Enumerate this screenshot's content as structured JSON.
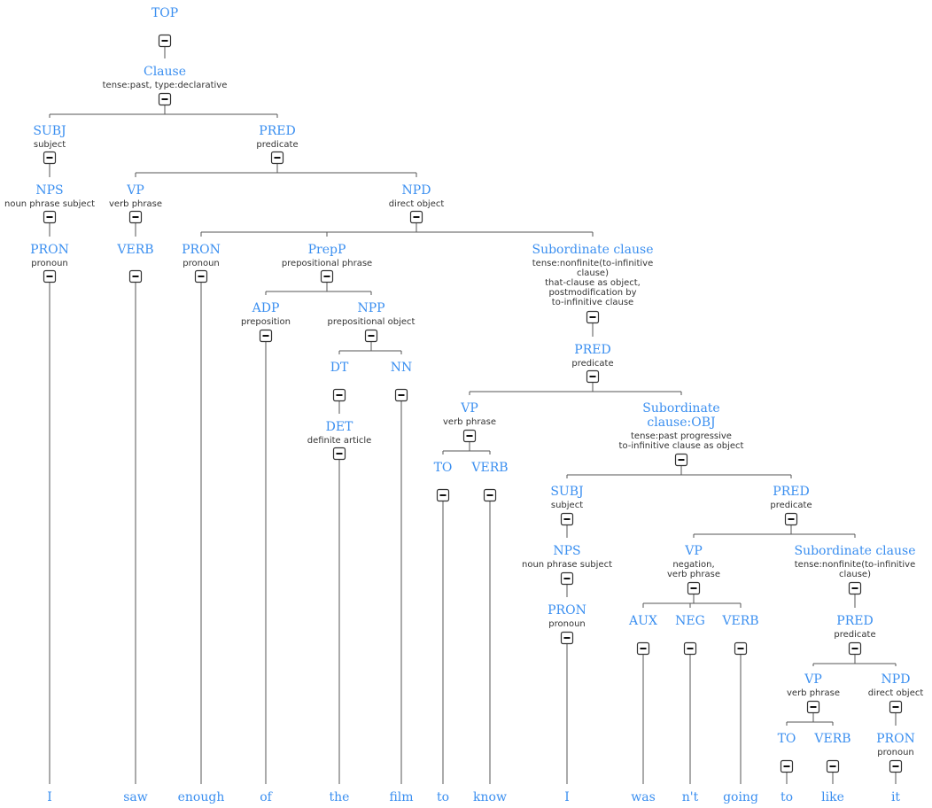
{
  "colors": {
    "label": "#3b8ff0",
    "description": "#333333",
    "edge": "#555555"
  },
  "toggle_icon": "collapse-minus-icon",
  "nodes": [
    {
      "id": "top",
      "label": "TOP",
      "desc": []
    },
    {
      "id": "clause",
      "label": "Clause",
      "desc": [
        "tense:past, type:declarative"
      ]
    },
    {
      "id": "subj",
      "label": "SUBJ",
      "desc": [
        "subject"
      ]
    },
    {
      "id": "pred",
      "label": "PRED",
      "desc": [
        "predicate"
      ]
    },
    {
      "id": "nps1",
      "label": "NPS",
      "desc": [
        "noun phrase subject"
      ]
    },
    {
      "id": "pron1",
      "label": "PRON",
      "desc": [
        "pronoun"
      ]
    },
    {
      "id": "vp1",
      "label": "VP",
      "desc": [
        "verb phrase"
      ]
    },
    {
      "id": "verb1",
      "label": "VERB",
      "desc": []
    },
    {
      "id": "npd",
      "label": "NPD",
      "desc": [
        "direct object"
      ]
    },
    {
      "id": "pron2",
      "label": "PRON",
      "desc": [
        "pronoun"
      ]
    },
    {
      "id": "prepp",
      "label": "PrepP",
      "desc": [
        "prepositional phrase"
      ]
    },
    {
      "id": "adp",
      "label": "ADP",
      "desc": [
        "preposition"
      ]
    },
    {
      "id": "npp",
      "label": "NPP",
      "desc": [
        "prepositional object"
      ]
    },
    {
      "id": "dt",
      "label": "DT",
      "desc": []
    },
    {
      "id": "det",
      "label": "DET",
      "desc": [
        "definite article"
      ]
    },
    {
      "id": "nn",
      "label": "NN",
      "desc": []
    },
    {
      "id": "sub1",
      "label": "Subordinate clause",
      "desc": [
        "tense:nonfinite(to-infinitive",
        "clause)",
        "that-clause as object,",
        "postmodification by",
        "to-infinitive clause"
      ]
    },
    {
      "id": "pred2",
      "label": "PRED",
      "desc": [
        "predicate"
      ]
    },
    {
      "id": "vp2",
      "label": "VP",
      "desc": [
        "verb phrase"
      ]
    },
    {
      "id": "to1",
      "label": "TO",
      "desc": []
    },
    {
      "id": "verb2",
      "label": "VERB",
      "desc": []
    },
    {
      "id": "sub2",
      "label": [
        "Subordinate",
        "clause:OBJ"
      ],
      "desc": [
        "tense:past progressive",
        "to-infinitive clause as object"
      ]
    },
    {
      "id": "subj2",
      "label": "SUBJ",
      "desc": [
        "subject"
      ]
    },
    {
      "id": "nps2",
      "label": "NPS",
      "desc": [
        "noun phrase subject"
      ]
    },
    {
      "id": "pron3",
      "label": "PRON",
      "desc": [
        "pronoun"
      ]
    },
    {
      "id": "pred3",
      "label": "PRED",
      "desc": [
        "predicate"
      ]
    },
    {
      "id": "vp3",
      "label": "VP",
      "desc": [
        "negation,",
        "verb phrase"
      ]
    },
    {
      "id": "aux",
      "label": "AUX",
      "desc": []
    },
    {
      "id": "neg",
      "label": "NEG",
      "desc": []
    },
    {
      "id": "verb3",
      "label": "VERB",
      "desc": []
    },
    {
      "id": "sub3",
      "label": "Subordinate clause",
      "desc": [
        "tense:nonfinite(to-infinitive",
        "clause)"
      ]
    },
    {
      "id": "pred4",
      "label": "PRED",
      "desc": [
        "predicate"
      ]
    },
    {
      "id": "vp4",
      "label": "VP",
      "desc": [
        "verb phrase"
      ]
    },
    {
      "id": "to2",
      "label": "TO",
      "desc": []
    },
    {
      "id": "verb4",
      "label": "VERB",
      "desc": []
    },
    {
      "id": "npd2",
      "label": "NPD",
      "desc": [
        "direct object"
      ]
    },
    {
      "id": "pron4",
      "label": "PRON",
      "desc": [
        "pronoun"
      ]
    }
  ],
  "edges": [
    [
      "top",
      "clause"
    ],
    [
      "clause",
      "subj"
    ],
    [
      "clause",
      "pred"
    ],
    [
      "subj",
      "nps1"
    ],
    [
      "nps1",
      "pron1"
    ],
    [
      "pred",
      "vp1"
    ],
    [
      "pred",
      "npd"
    ],
    [
      "vp1",
      "verb1"
    ],
    [
      "npd",
      "pron2"
    ],
    [
      "npd",
      "prepp"
    ],
    [
      "npd",
      "sub1"
    ],
    [
      "prepp",
      "adp"
    ],
    [
      "prepp",
      "npp"
    ],
    [
      "npp",
      "dt"
    ],
    [
      "npp",
      "nn"
    ],
    [
      "dt",
      "det"
    ],
    [
      "sub1",
      "pred2"
    ],
    [
      "pred2",
      "vp2"
    ],
    [
      "pred2",
      "sub2"
    ],
    [
      "vp2",
      "to1"
    ],
    [
      "vp2",
      "verb2"
    ],
    [
      "sub2",
      "subj2"
    ],
    [
      "sub2",
      "pred3"
    ],
    [
      "subj2",
      "nps2"
    ],
    [
      "nps2",
      "pron3"
    ],
    [
      "pred3",
      "vp3"
    ],
    [
      "pred3",
      "sub3"
    ],
    [
      "vp3",
      "aux"
    ],
    [
      "vp3",
      "neg"
    ],
    [
      "vp3",
      "verb3"
    ],
    [
      "sub3",
      "pred4"
    ],
    [
      "pred4",
      "vp4"
    ],
    [
      "pred4",
      "npd2"
    ],
    [
      "vp4",
      "to2"
    ],
    [
      "vp4",
      "verb4"
    ],
    [
      "npd2",
      "pron4"
    ]
  ],
  "words": [
    {
      "text": "I",
      "leaf": "pron1"
    },
    {
      "text": "saw",
      "leaf": "verb1"
    },
    {
      "text": "enough",
      "leaf": "pron2"
    },
    {
      "text": "of",
      "leaf": "adp"
    },
    {
      "text": "the",
      "leaf": "det"
    },
    {
      "text": "film",
      "leaf": "nn"
    },
    {
      "text": "to",
      "leaf": "to1"
    },
    {
      "text": "know",
      "leaf": "verb2"
    },
    {
      "text": "I",
      "leaf": "pron3"
    },
    {
      "text": "was",
      "leaf": "aux"
    },
    {
      "text": "n't",
      "leaf": "neg"
    },
    {
      "text": "going",
      "leaf": "verb3"
    },
    {
      "text": "to",
      "leaf": "to2"
    },
    {
      "text": "like",
      "leaf": "verb4"
    },
    {
      "text": "it",
      "leaf": "pron4"
    }
  ]
}
